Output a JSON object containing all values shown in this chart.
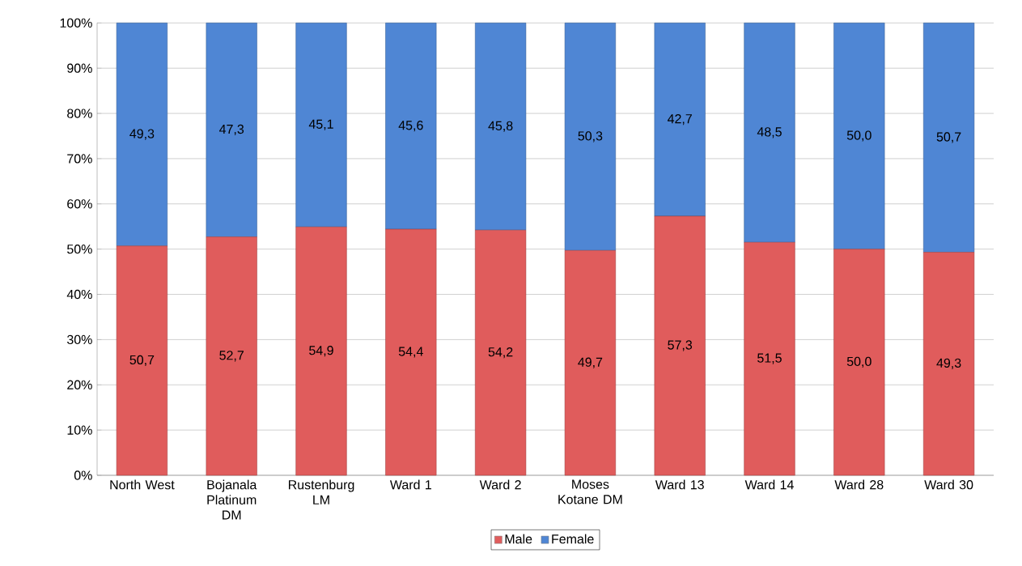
{
  "chart_data": {
    "type": "bar",
    "stacked": true,
    "categories": [
      "North West",
      "Bojanala Platinum DM",
      "Rustenburg LM",
      "Ward 1",
      "Ward 2",
      "Moses Kotane DM",
      "Ward 13",
      "Ward 14",
      "Ward 28",
      "Ward 30"
    ],
    "series": [
      {
        "name": "Male",
        "color": "#e05c5c",
        "values": [
          50.7,
          52.7,
          54.9,
          54.4,
          54.2,
          49.7,
          57.3,
          51.5,
          50.0,
          49.3
        ],
        "value_labels": [
          "50,7",
          "52,7",
          "54,9",
          "54,4",
          "54,2",
          "49,7",
          "57,3",
          "51,5",
          "50,0",
          "49,3"
        ]
      },
      {
        "name": "Female",
        "color": "#4f86d4",
        "values": [
          49.3,
          47.3,
          45.1,
          45.6,
          45.8,
          50.3,
          42.7,
          48.5,
          50.0,
          50.7
        ],
        "value_labels": [
          "49,3",
          "47,3",
          "45,1",
          "45,6",
          "45,8",
          "50,3",
          "42,7",
          "48,5",
          "50,0",
          "50,7"
        ]
      }
    ],
    "ylim": [
      0,
      100
    ],
    "yticks": [
      {
        "value": 0,
        "label": "0%"
      },
      {
        "value": 10,
        "label": "10%"
      },
      {
        "value": 20,
        "label": "20%"
      },
      {
        "value": 30,
        "label": "30%"
      },
      {
        "value": 40,
        "label": "40%"
      },
      {
        "value": 50,
        "label": "50%"
      },
      {
        "value": 60,
        "label": "60%"
      },
      {
        "value": 70,
        "label": "70%"
      },
      {
        "value": 80,
        "label": "80%"
      },
      {
        "value": 90,
        "label": "90%"
      },
      {
        "value": 100,
        "label": "100%"
      }
    ],
    "grid": "y",
    "legend": "bottom"
  }
}
